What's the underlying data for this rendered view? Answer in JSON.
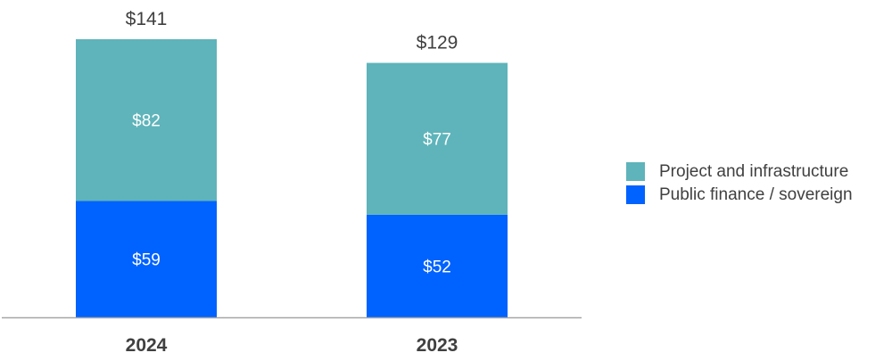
{
  "chart_data": {
    "type": "bar",
    "stacked": true,
    "categories": [
      "2024",
      "2023"
    ],
    "series": [
      {
        "name": "Public finance / sovereign",
        "values": [
          59,
          52
        ],
        "labels": [
          "$59",
          "$52"
        ],
        "color": "#0062FF"
      },
      {
        "name": "Project and infrastructure",
        "values": [
          82,
          77
        ],
        "labels": [
          "$82",
          "$77"
        ],
        "color": "#5EB4BA"
      }
    ],
    "totals": [
      141,
      129
    ],
    "total_labels": [
      "$141",
      "$129"
    ],
    "title": "",
    "xlabel": "",
    "ylabel": "",
    "ylim": [
      0,
      141
    ],
    "grid": false,
    "legend_position": "right",
    "colors": {
      "total_label": "#404040",
      "segment_label": "#FFFFFF",
      "category_label": "#404040",
      "axis": "#A6A6A6"
    }
  },
  "legend": {
    "items": [
      {
        "label": "Project and infrastructure",
        "color": "#5EB4BA"
      },
      {
        "label": "Public finance / sovereign",
        "color": "#0062FF"
      }
    ]
  }
}
